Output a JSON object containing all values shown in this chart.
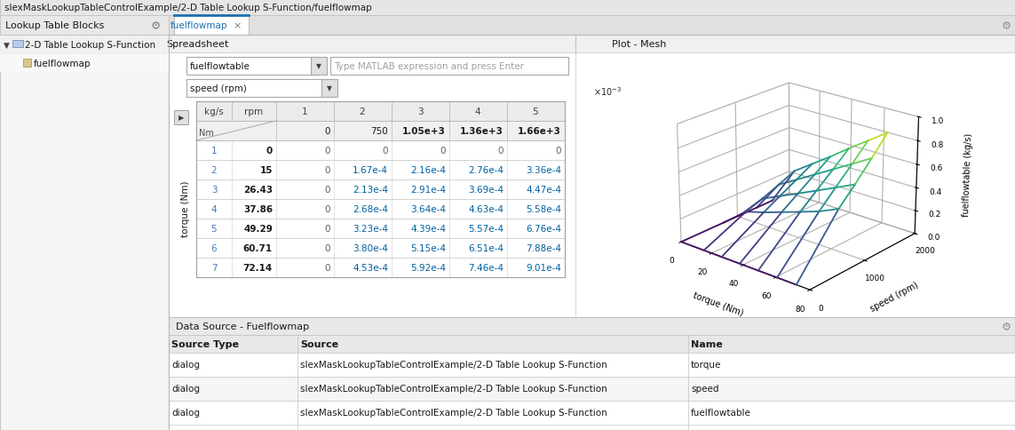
{
  "title": "slexMaskLookupTableControlExample/2-D Table Lookup S-Function/fuelflowmap",
  "tab_label": "fuelflowmap",
  "spreadsheet_label": "Spreadsheet",
  "plot_mesh_label": "Plot - Mesh",
  "lookup_table_blocks": "Lookup Table Blocks",
  "tree_item": "2-D Table Lookup S-Function",
  "tree_subitem": "fuelflowmap",
  "dropdown1": "fuelflowtable",
  "dropdown1_placeholder": "Type MATLAB expression and press Enter",
  "dropdown2": "speed (rpm)",
  "table_data_numeric": [
    [
      0,
      0,
      0,
      0,
      0
    ],
    [
      0,
      0.000167,
      0.000216,
      0.000276,
      0.000336
    ],
    [
      0,
      0.000213,
      0.000291,
      0.000369,
      0.000447
    ],
    [
      0,
      0.000268,
      0.000364,
      0.000463,
      0.000558
    ],
    [
      0,
      0.000323,
      0.000439,
      0.000557,
      0.000676
    ],
    [
      0,
      0.00038,
      0.000515,
      0.000651,
      0.000788
    ],
    [
      0,
      0.000453,
      0.000592,
      0.000746,
      0.000901
    ]
  ],
  "torque_nm": [
    0,
    15,
    26.43,
    37.86,
    49.29,
    60.71,
    72.14
  ],
  "speed_rpm": [
    0,
    750,
    1050,
    1360,
    1660
  ],
  "data_source_title": "Data Source - Fuelflowmap",
  "ds_headers": [
    "Source Type",
    "Source",
    "Name"
  ],
  "ds_rows": [
    [
      "dialog",
      "slexMaskLookupTableControlExample/2-D Table Lookup S-Function",
      "torque"
    ],
    [
      "dialog",
      "slexMaskLookupTableControlExample/2-D Table Lookup S-Function",
      "speed"
    ],
    [
      "dialog",
      "slexMaskLookupTableControlExample/2-D Table Lookup S-Function",
      "fuelflowtable"
    ]
  ],
  "col_breakpoints_display": [
    "0",
    "750",
    "1.05e+3",
    "1.36e+3",
    "1.66e+3"
  ],
  "row_indices_display": [
    "1",
    "2",
    "3",
    "4",
    "5",
    "6",
    "7"
  ],
  "torque_display": [
    "0",
    "15",
    "26.43",
    "37.86",
    "49.29",
    "60.71",
    "72.14"
  ],
  "table_display": [
    [
      "0",
      "0",
      "0",
      "0",
      "0"
    ],
    [
      "0",
      "1.67e-4",
      "2.16e-4",
      "2.76e-4",
      "3.36e-4"
    ],
    [
      "0",
      "2.13e-4",
      "2.91e-4",
      "3.69e-4",
      "4.47e-4"
    ],
    [
      "0",
      "2.68e-4",
      "3.64e-4",
      "4.63e-4",
      "5.58e-4"
    ],
    [
      "0",
      "3.23e-4",
      "4.39e-4",
      "5.57e-4",
      "6.76e-4"
    ],
    [
      "0",
      "3.80e-4",
      "5.15e-4",
      "6.51e-4",
      "7.88e-4"
    ],
    [
      "0",
      "4.53e-4",
      "5.92e-4",
      "7.46e-4",
      "9.01e-4"
    ]
  ],
  "bg_light": "#f2f2f2",
  "bg_white": "#ffffff",
  "bg_panel": "#f8f8f8",
  "bg_header": "#e8e8e8",
  "bg_subheader": "#efefef",
  "border_color": "#c8c8c8",
  "text_dark": "#1a1a1a",
  "text_blue": "#1060b0",
  "text_gray": "#707070",
  "text_light": "#909090",
  "tab_blue": "#1a6faf",
  "plot_bg": "#ffffff"
}
